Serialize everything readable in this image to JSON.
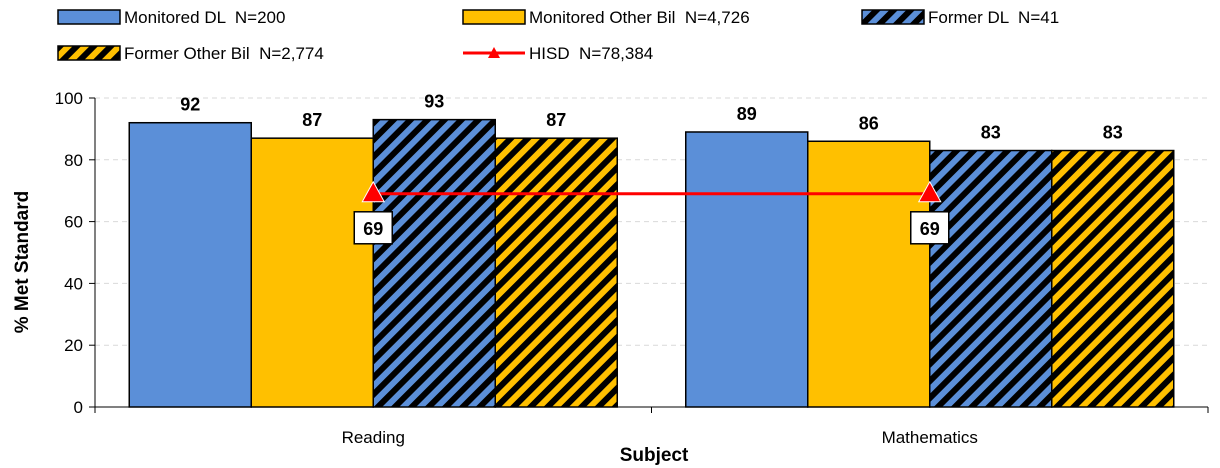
{
  "chart_data": {
    "type": "bar",
    "xlabel": "Subject",
    "ylabel": "% Met Standard",
    "ylim": [
      0,
      100
    ],
    "yticks": [
      "0",
      "20",
      "40",
      "60",
      "80",
      "100"
    ],
    "categories": [
      "Reading",
      "Mathematics"
    ],
    "grid": true,
    "legend_position": "top",
    "series": [
      {
        "name": "Monitored DL  N=200",
        "values": [
          92,
          89
        ],
        "labels": [
          "92",
          "89"
        ],
        "color": "#5b8fd8",
        "pattern": "solid"
      },
      {
        "name": "Monitored Other Bil  N=4,726",
        "values": [
          87,
          86
        ],
        "labels": [
          "87",
          "86"
        ],
        "color": "#ffc000",
        "pattern": "solid"
      },
      {
        "name": "Former DL  N=41",
        "values": [
          93,
          83
        ],
        "labels": [
          "93",
          "83"
        ],
        "color": "#5b8fd8",
        "pattern": "hatched"
      },
      {
        "name": "Former Other Bil  N=2,774",
        "values": [
          87,
          83
        ],
        "labels": [
          "87",
          "83"
        ],
        "color": "#ffc000",
        "pattern": "hatched"
      }
    ],
    "line_series": {
      "name": "HISD  N=78,384",
      "values": [
        69,
        69
      ],
      "labels": [
        "69",
        "69"
      ],
      "color": "#ff0000",
      "marker": "triangle"
    }
  }
}
